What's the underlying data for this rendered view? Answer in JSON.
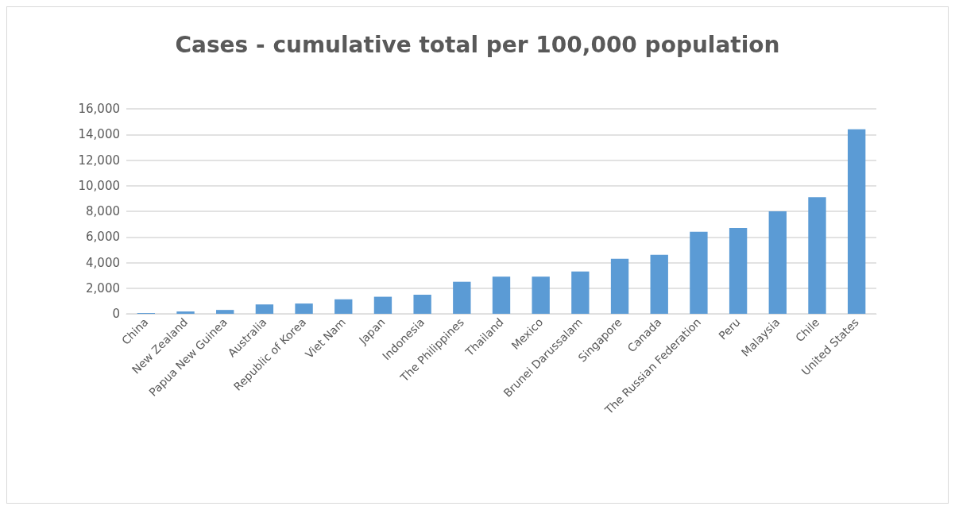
{
  "chart_data": {
    "type": "bar",
    "title": "Cases - cumulative total per 100,000 population",
    "categories": [
      "China",
      "New Zealand",
      "Papua New Guinea",
      "Australia",
      "Republic of Korea",
      "Viet Nam",
      "Japan",
      "Indonesia",
      "The Philippines",
      "Thailand",
      "Mexico",
      "Brunei Darussalam",
      "Singapore",
      "Canada",
      "The Russian Federation",
      "Peru",
      "Malaysia",
      "Chile",
      "United States"
    ],
    "values": [
      60,
      180,
      300,
      730,
      800,
      1130,
      1330,
      1490,
      2500,
      2900,
      2900,
      3300,
      4300,
      4600,
      6400,
      6700,
      8000,
      9100,
      14400
    ],
    "color": "#5b9bd5",
    "ylim": [
      0,
      16000
    ],
    "yticks": [
      {
        "value": 0,
        "label": "0"
      },
      {
        "value": 2000,
        "label": "2,000"
      },
      {
        "value": 4000,
        "label": "4,000"
      },
      {
        "value": 6000,
        "label": "6,000"
      },
      {
        "value": 8000,
        "label": "8,000"
      },
      {
        "value": 10000,
        "label": "10,000"
      },
      {
        "value": 12000,
        "label": "12,000"
      },
      {
        "value": 14000,
        "label": "14,000"
      },
      {
        "value": 16000,
        "label": "16,000"
      }
    ],
    "grid": true
  }
}
